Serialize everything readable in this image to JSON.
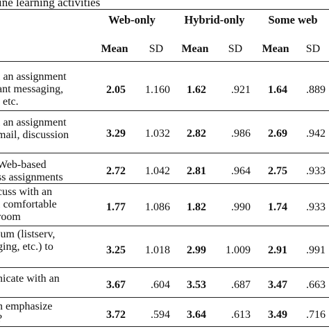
{
  "table": {
    "caption": "ine learning activities",
    "groups": [
      "Web-only",
      "Hybrid-only",
      "Some web"
    ],
    "subheaders": {
      "mean": "Mean",
      "sd": "SD"
    },
    "rows": [
      {
        "item": [
          "l an assignment",
          "ant messaging,",
          ", etc."
        ],
        "values": [
          "2.05",
          "1.160",
          "1.62",
          ".921",
          "1.64",
          ".889"
        ]
      },
      {
        "item": [
          "l an assignment",
          "mail, discussion",
          ""
        ],
        "values": [
          "3.29",
          "1.032",
          "2.82",
          ".986",
          "2.69",
          ".942"
        ]
      },
      {
        "item": [
          " Web-based",
          "ss assignments",
          ""
        ],
        "values": [
          "2.72",
          "1.042",
          "2.81",
          ".964",
          "2.75",
          ".933"
        ]
      },
      {
        "item": [
          "cuss with an",
          "l comfortable",
          "room"
        ],
        "values": [
          "1.77",
          "1.086",
          "1.82",
          ".990",
          "1.74",
          ".933"
        ]
      },
      {
        "item": [
          "ium (listserv,",
          "ging, etc.) to",
          ""
        ],
        "values": [
          "3.25",
          "1.018",
          "2.99",
          "1.009",
          "2.91",
          ".991"
        ]
      },
      {
        "item": [
          "nicate with an",
          "",
          ""
        ],
        "values": [
          "3.67",
          ".604",
          "3.53",
          ".687",
          "3.47",
          ".663"
        ]
      },
      {
        "item": [
          "n emphasize",
          "?",
          ""
        ],
        "values": [
          "3.72",
          ".594",
          "3.64",
          ".613",
          "3.49",
          ".716"
        ]
      }
    ]
  }
}
